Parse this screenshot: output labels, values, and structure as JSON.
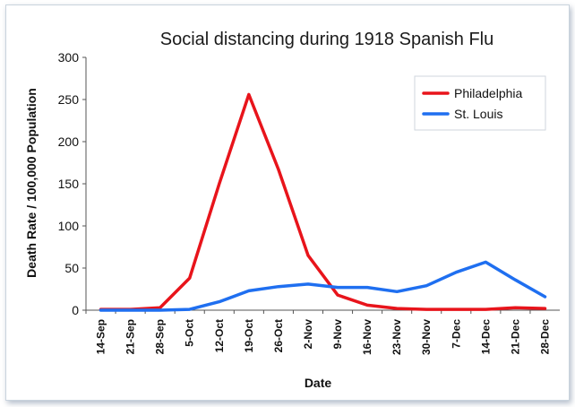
{
  "chart_data": {
    "type": "line",
    "title": "Social distancing during 1918 Spanish Flu",
    "xlabel": "Date",
    "ylabel": "Death Rate / 100,000 Population",
    "categories": [
      "14-Sep",
      "21-Sep",
      "28-Sep",
      "5-Oct",
      "12-Oct",
      "19-Oct",
      "26-Oct",
      "2-Nov",
      "9-Nov",
      "16-Nov",
      "23-Nov",
      "30-Nov",
      "7-Dec",
      "14-Dec",
      "21-Dec",
      "28-Dec"
    ],
    "yticks": [
      "0",
      "50",
      "100",
      "150",
      "200",
      "250",
      "300"
    ],
    "ylim": [
      0,
      300
    ],
    "grid": false,
    "legend_position": "top-right",
    "series": [
      {
        "name": "Philadelphia",
        "color": "#e8141b",
        "values": [
          1,
          1,
          3,
          38,
          150,
          256,
          167,
          65,
          18,
          6,
          2,
          1,
          1,
          1,
          3,
          2
        ]
      },
      {
        "name": "St. Louis",
        "color": "#1f6ff0",
        "values": [
          0,
          0,
          0,
          1,
          10,
          23,
          28,
          31,
          27,
          27,
          22,
          29,
          45,
          57,
          36,
          16
        ]
      }
    ]
  }
}
